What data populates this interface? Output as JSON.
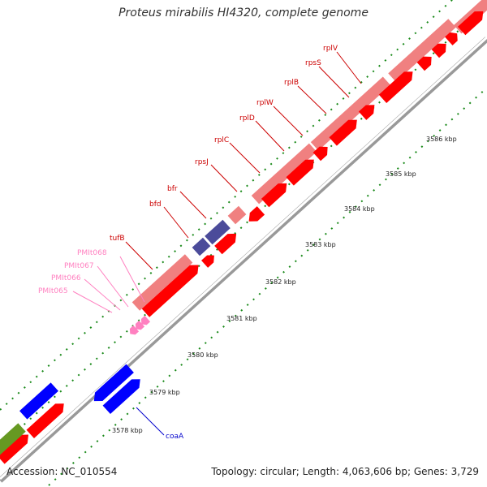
{
  "title": "Proteus mirabilis HI4320, complete genome",
  "footer": {
    "accession": "Accession: NC_010554",
    "summary": "Topology: circular; Length: 4,063,606 bp; Genes: 3,729"
  },
  "colors": {
    "cds": "#ff0000",
    "rna": "#f08080",
    "protein_blue": "#0000ff",
    "navy": "#4b4b9a",
    "pink": "#ff80c0",
    "green": "#2e8b20",
    "olive": "#669922"
  },
  "scale_labels": [
    "3578 kbp",
    "3579 kbp",
    "3580 kbp",
    "3581 kbp",
    "3582 kbp",
    "3583 kbp",
    "3584 kbp",
    "3585 kbp",
    "3586 kbp"
  ],
  "gene_labels": [
    {
      "text": "rplV",
      "color": "#cc0000"
    },
    {
      "text": "rpsS",
      "color": "#cc0000"
    },
    {
      "text": "rplB",
      "color": "#cc0000"
    },
    {
      "text": "rplW",
      "color": "#cc0000"
    },
    {
      "text": "rplD",
      "color": "#cc0000"
    },
    {
      "text": "rplC",
      "color": "#cc0000"
    },
    {
      "text": "rpsJ",
      "color": "#cc0000"
    },
    {
      "text": "bfr",
      "color": "#cc0000"
    },
    {
      "text": "bfd",
      "color": "#cc0000"
    },
    {
      "text": "tufB",
      "color": "#cc0000"
    },
    {
      "text": "PMIt068",
      "color": "#ff80c0"
    },
    {
      "text": "PMIt067",
      "color": "#ff80c0"
    },
    {
      "text": "PMIt066",
      "color": "#ff80c0"
    },
    {
      "text": "PMIt065",
      "color": "#ff80c0"
    },
    {
      "text": "coaA",
      "color": "#0000cc"
    }
  ]
}
